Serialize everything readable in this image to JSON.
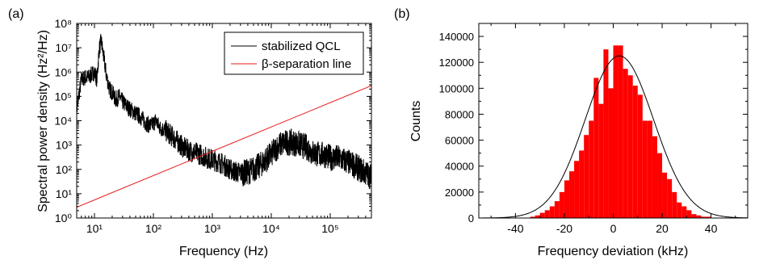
{
  "chart_data": [
    {
      "panel_label": "(a)",
      "type": "line",
      "xlabel": "Frequency (Hz)",
      "ylabel": "Spectral power density (Hz²/Hz)",
      "xscale": "log",
      "yscale": "log",
      "xlim": [
        5,
        500000
      ],
      "ylim": [
        1,
        100000000
      ],
      "x_major_ticks": [
        {
          "value": 10,
          "label": "10¹"
        },
        {
          "value": 100,
          "label": "10²"
        },
        {
          "value": 1000,
          "label": "10³"
        },
        {
          "value": 10000,
          "label": "10⁴"
        },
        {
          "value": 100000,
          "label": "10⁵"
        }
      ],
      "y_major_ticks": [
        {
          "value": 1,
          "label": "10⁰"
        },
        {
          "value": 10,
          "label": "10¹"
        },
        {
          "value": 100,
          "label": "10²"
        },
        {
          "value": 1000,
          "label": "10³"
        },
        {
          "value": 10000,
          "label": "10⁴"
        },
        {
          "value": 100000,
          "label": "10⁵"
        },
        {
          "value": 1000000,
          "label": "10⁶"
        },
        {
          "value": 10000000,
          "label": "10⁷"
        },
        {
          "value": 100000000,
          "label": "10⁸"
        }
      ],
      "legend_position": "top-right",
      "series": [
        {
          "name": "stabilized QCL",
          "color": "#000000",
          "x": [
            5,
            6,
            7,
            8,
            9,
            10,
            11,
            12,
            13,
            14,
            16,
            18,
            20,
            23,
            26,
            30,
            35,
            40,
            50,
            60,
            75,
            90,
            110,
            130,
            160,
            200,
            250,
            320,
            400,
            500,
            650,
            800,
            1000,
            1300,
            1600,
            2000,
            2500,
            3200,
            4000,
            5000,
            6500,
            8000,
            10000,
            13000,
            16000,
            20000,
            25000,
            32000,
            40000,
            50000,
            65000,
            80000,
            100000,
            130000,
            160000,
            200000,
            250000,
            320000,
            400000,
            500000
          ],
          "y": [
            30000,
            500000,
            600000,
            600000,
            800000,
            1000000,
            500000,
            8000000,
            20000000,
            6000000,
            700000,
            200000,
            150000,
            70000,
            100000,
            60000,
            40000,
            30000,
            20000,
            15000,
            8000,
            6000,
            10000,
            5000,
            4000,
            2500,
            1500,
            800,
            600,
            500,
            400,
            300,
            250,
            200,
            150,
            100,
            80,
            70,
            80,
            100,
            150,
            250,
            400,
            900,
            1200,
            1300,
            1200,
            1000,
            800,
            500,
            400,
            400,
            300,
            300,
            250,
            200,
            150,
            100,
            70,
            50
          ]
        },
        {
          "name": "β-separation line",
          "color": "#e8181a",
          "x": [
            5,
            500000
          ],
          "y": [
            2.77,
            277000
          ]
        }
      ]
    },
    {
      "panel_label": "(b)",
      "type": "bar",
      "subtype": "histogram",
      "xlabel": "Frequency deviation (kHz)",
      "ylabel": "Counts",
      "xlim": [
        -55,
        55
      ],
      "ylim": [
        0,
        150000
      ],
      "x_ticks": [
        -40,
        -20,
        0,
        20,
        40
      ],
      "y_ticks": [
        0,
        20000,
        40000,
        60000,
        80000,
        100000,
        120000,
        140000
      ],
      "bar_color": "#ff0000",
      "bin_width": 2,
      "bin_starts": [
        -34,
        -32,
        -30,
        -28,
        -26,
        -24,
        -22,
        -20,
        -18,
        -16,
        -14,
        -12,
        -10,
        -8,
        -6,
        -4,
        -2,
        0,
        2,
        4,
        6,
        8,
        10,
        12,
        14,
        16,
        18,
        20,
        22,
        24,
        26,
        28,
        30,
        32,
        34,
        36,
        38
      ],
      "values": [
        1000,
        2000,
        4000,
        6000,
        9000,
        13000,
        20000,
        29000,
        36000,
        44000,
        52000,
        64000,
        75000,
        108000,
        88000,
        130000,
        100000,
        133000,
        133000,
        115000,
        110000,
        102000,
        95000,
        75000,
        75000,
        63000,
        50000,
        35000,
        30000,
        20000,
        12000,
        9000,
        6000,
        3000,
        2000,
        1000,
        1000
      ],
      "fit": {
        "type": "gaussian",
        "color": "#000000",
        "center": 2.5,
        "amplitude": 125000,
        "sigma": 14
      }
    }
  ]
}
